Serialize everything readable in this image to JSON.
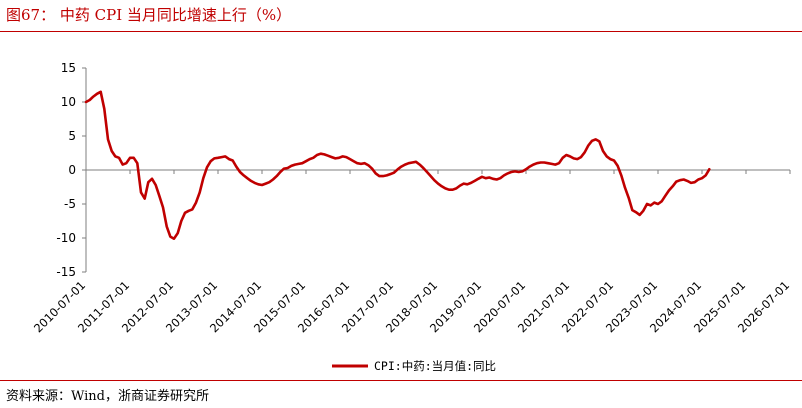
{
  "figure": {
    "title": "图67：  中药 CPI 当月同比增速上行（%）",
    "source": "资料来源：Wind，浙商证券研究所"
  },
  "colors": {
    "accent": "#c00000",
    "line": "#c00000",
    "axis": "#7f7f7f"
  },
  "chart_data": {
    "type": "line",
    "title": "",
    "xlabel": "",
    "ylabel": "",
    "ylim": [
      -15,
      15
    ],
    "yticks": [
      -15,
      -10,
      -5,
      0,
      5,
      10,
      15
    ],
    "xlim": [
      "2010-07",
      "2026-07"
    ],
    "xticks": [
      "2010-07-01",
      "2011-07-01",
      "2012-07-01",
      "2013-07-01",
      "2014-07-01",
      "2015-07-01",
      "2016-07-01",
      "2017-07-01",
      "2018-07-01",
      "2019-07-01",
      "2020-07-01",
      "2021-07-01",
      "2022-07-01",
      "2023-07-01",
      "2024-07-01",
      "2025-07-01",
      "2026-07-01"
    ],
    "grid": false,
    "legend_position": "bottom-center",
    "series": [
      {
        "name": "CPI:中药:当月值:同比",
        "color": "#c00000",
        "points": [
          [
            "2010-07",
            10.0
          ],
          [
            "2010-08",
            10.3
          ],
          [
            "2010-09",
            10.8
          ],
          [
            "2010-10",
            11.2
          ],
          [
            "2010-11",
            11.5
          ],
          [
            "2010-12",
            9.0
          ],
          [
            "2011-01",
            4.5
          ],
          [
            "2011-02",
            2.8
          ],
          [
            "2011-03",
            2.0
          ],
          [
            "2011-04",
            1.8
          ],
          [
            "2011-05",
            0.8
          ],
          [
            "2011-06",
            1.0
          ],
          [
            "2011-07",
            1.8
          ],
          [
            "2011-08",
            1.8
          ],
          [
            "2011-09",
            1.0
          ],
          [
            "2011-10",
            -3.3
          ],
          [
            "2011-11",
            -4.2
          ],
          [
            "2011-12",
            -1.8
          ],
          [
            "2012-01",
            -1.3
          ],
          [
            "2012-02",
            -2.2
          ],
          [
            "2012-03",
            -3.8
          ],
          [
            "2012-04",
            -5.5
          ],
          [
            "2012-05",
            -8.3
          ],
          [
            "2012-06",
            -9.8
          ],
          [
            "2012-07",
            -10.1
          ],
          [
            "2012-08",
            -9.3
          ],
          [
            "2012-09",
            -7.5
          ],
          [
            "2012-10",
            -6.3
          ],
          [
            "2012-11",
            -6.0
          ],
          [
            "2012-12",
            -5.8
          ],
          [
            "2013-01",
            -4.8
          ],
          [
            "2013-02",
            -3.3
          ],
          [
            "2013-03",
            -1.2
          ],
          [
            "2013-04",
            0.4
          ],
          [
            "2013-05",
            1.3
          ],
          [
            "2013-06",
            1.7
          ],
          [
            "2013-07",
            1.8
          ],
          [
            "2013-08",
            1.9
          ],
          [
            "2013-09",
            2.0
          ],
          [
            "2013-10",
            1.6
          ],
          [
            "2013-11",
            1.4
          ],
          [
            "2013-12",
            0.5
          ],
          [
            "2014-01",
            -0.3
          ],
          [
            "2014-02",
            -0.8
          ],
          [
            "2014-03",
            -1.2
          ],
          [
            "2014-04",
            -1.6
          ],
          [
            "2014-05",
            -1.9
          ],
          [
            "2014-06",
            -2.1
          ],
          [
            "2014-07",
            -2.2
          ],
          [
            "2014-08",
            -2.0
          ],
          [
            "2014-09",
            -1.8
          ],
          [
            "2014-10",
            -1.4
          ],
          [
            "2014-11",
            -0.9
          ],
          [
            "2014-12",
            -0.3
          ],
          [
            "2015-01",
            0.2
          ],
          [
            "2015-02",
            0.3
          ],
          [
            "2015-03",
            0.6
          ],
          [
            "2015-04",
            0.8
          ],
          [
            "2015-05",
            0.9
          ],
          [
            "2015-06",
            1.0
          ],
          [
            "2015-07",
            1.3
          ],
          [
            "2015-08",
            1.6
          ],
          [
            "2015-09",
            1.8
          ],
          [
            "2015-10",
            2.2
          ],
          [
            "2015-11",
            2.4
          ],
          [
            "2015-12",
            2.3
          ],
          [
            "2016-01",
            2.1
          ],
          [
            "2016-02",
            1.9
          ],
          [
            "2016-03",
            1.7
          ],
          [
            "2016-04",
            1.8
          ],
          [
            "2016-05",
            2.0
          ],
          [
            "2016-06",
            1.9
          ],
          [
            "2016-07",
            1.6
          ],
          [
            "2016-08",
            1.3
          ],
          [
            "2016-09",
            1.0
          ],
          [
            "2016-10",
            0.9
          ],
          [
            "2016-11",
            1.0
          ],
          [
            "2016-12",
            0.7
          ],
          [
            "2017-01",
            0.2
          ],
          [
            "2017-02",
            -0.5
          ],
          [
            "2017-03",
            -0.9
          ],
          [
            "2017-04",
            -0.9
          ],
          [
            "2017-05",
            -0.8
          ],
          [
            "2017-06",
            -0.6
          ],
          [
            "2017-07",
            -0.4
          ],
          [
            "2017-08",
            0.1
          ],
          [
            "2017-09",
            0.5
          ],
          [
            "2017-10",
            0.8
          ],
          [
            "2017-11",
            1.0
          ],
          [
            "2017-12",
            1.1
          ],
          [
            "2018-01",
            1.2
          ],
          [
            "2018-02",
            0.8
          ],
          [
            "2018-03",
            0.3
          ],
          [
            "2018-04",
            -0.3
          ],
          [
            "2018-05",
            -0.9
          ],
          [
            "2018-06",
            -1.5
          ],
          [
            "2018-07",
            -2.0
          ],
          [
            "2018-08",
            -2.4
          ],
          [
            "2018-09",
            -2.7
          ],
          [
            "2018-10",
            -2.9
          ],
          [
            "2018-11",
            -2.9
          ],
          [
            "2018-12",
            -2.7
          ],
          [
            "2019-01",
            -2.3
          ],
          [
            "2019-02",
            -2.0
          ],
          [
            "2019-03",
            -2.1
          ],
          [
            "2019-04",
            -1.9
          ],
          [
            "2019-05",
            -1.6
          ],
          [
            "2019-06",
            -1.3
          ],
          [
            "2019-07",
            -1.0
          ],
          [
            "2019-08",
            -1.2
          ],
          [
            "2019-09",
            -1.1
          ],
          [
            "2019-10",
            -1.3
          ],
          [
            "2019-11",
            -1.4
          ],
          [
            "2019-12",
            -1.2
          ],
          [
            "2020-01",
            -0.8
          ],
          [
            "2020-02",
            -0.5
          ],
          [
            "2020-03",
            -0.3
          ],
          [
            "2020-04",
            -0.2
          ],
          [
            "2020-05",
            -0.3
          ],
          [
            "2020-06",
            -0.2
          ],
          [
            "2020-07",
            0.1
          ],
          [
            "2020-08",
            0.5
          ],
          [
            "2020-09",
            0.8
          ],
          [
            "2020-10",
            1.0
          ],
          [
            "2020-11",
            1.1
          ],
          [
            "2020-12",
            1.1
          ],
          [
            "2021-01",
            1.0
          ],
          [
            "2021-02",
            0.9
          ],
          [
            "2021-03",
            0.8
          ],
          [
            "2021-04",
            1.0
          ],
          [
            "2021-05",
            1.8
          ],
          [
            "2021-06",
            2.2
          ],
          [
            "2021-07",
            2.0
          ],
          [
            "2021-08",
            1.7
          ],
          [
            "2021-09",
            1.6
          ],
          [
            "2021-10",
            1.9
          ],
          [
            "2021-11",
            2.6
          ],
          [
            "2021-12",
            3.6
          ],
          [
            "2022-01",
            4.3
          ],
          [
            "2022-02",
            4.5
          ],
          [
            "2022-03",
            4.2
          ],
          [
            "2022-04",
            2.8
          ],
          [
            "2022-05",
            2.0
          ],
          [
            "2022-06",
            1.6
          ],
          [
            "2022-07",
            1.4
          ],
          [
            "2022-08",
            0.6
          ],
          [
            "2022-09",
            -0.8
          ],
          [
            "2022-10",
            -2.6
          ],
          [
            "2022-11",
            -4.1
          ],
          [
            "2022-12",
            -5.9
          ],
          [
            "2023-01",
            -6.2
          ],
          [
            "2023-02",
            -6.6
          ],
          [
            "2023-03",
            -6.0
          ],
          [
            "2023-04",
            -5.0
          ],
          [
            "2023-05",
            -5.2
          ],
          [
            "2023-06",
            -4.8
          ],
          [
            "2023-07",
            -5.0
          ],
          [
            "2023-08",
            -4.6
          ],
          [
            "2023-09",
            -3.8
          ],
          [
            "2023-10",
            -3.0
          ],
          [
            "2023-11",
            -2.4
          ],
          [
            "2023-12",
            -1.7
          ],
          [
            "2024-01",
            -1.5
          ],
          [
            "2024-02",
            -1.4
          ],
          [
            "2024-03",
            -1.6
          ],
          [
            "2024-04",
            -1.9
          ],
          [
            "2024-05",
            -1.8
          ],
          [
            "2024-06",
            -1.4
          ],
          [
            "2024-07",
            -1.2
          ],
          [
            "2024-08",
            -0.8
          ],
          [
            "2024-09",
            0.1
          ]
        ]
      }
    ]
  }
}
